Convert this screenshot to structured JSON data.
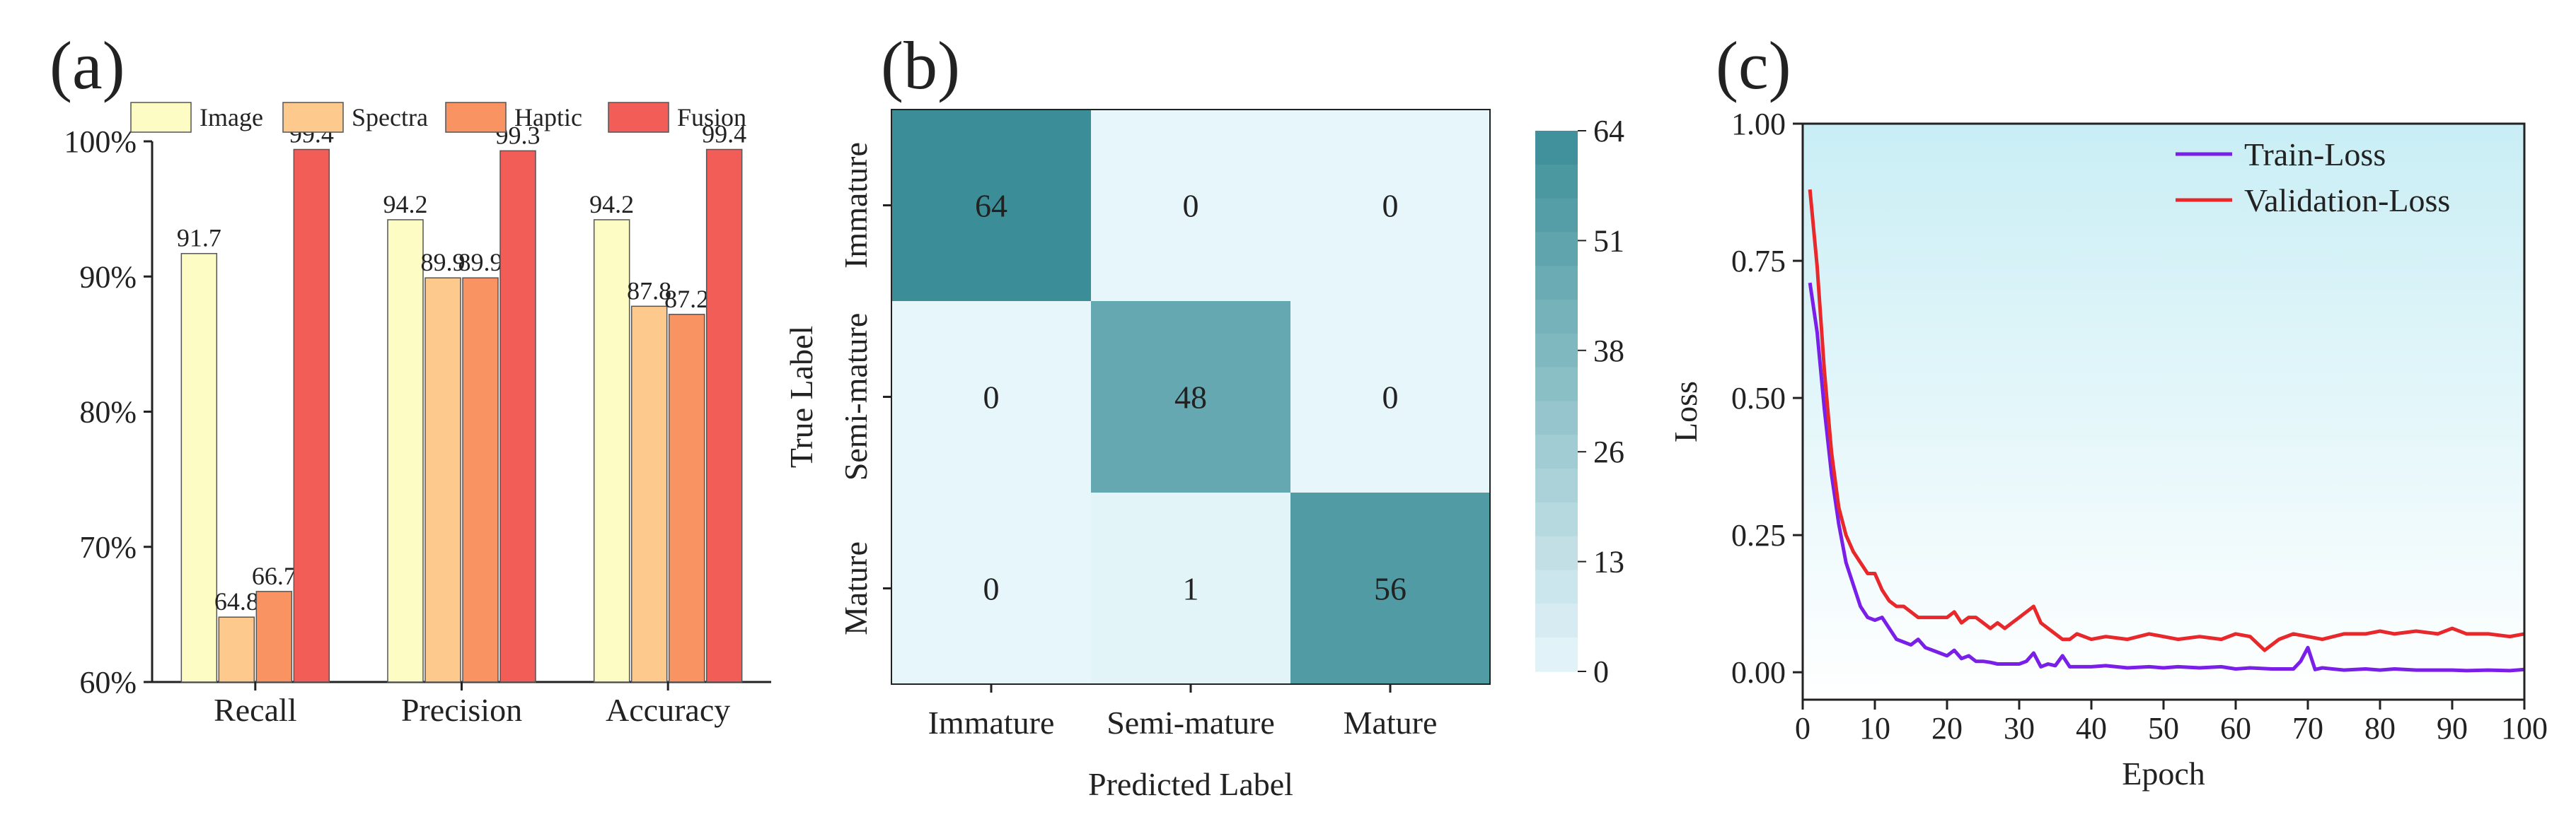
{
  "panels": {
    "a": {
      "letter": "(a)"
    },
    "b": {
      "letter": "(b)"
    },
    "c": {
      "letter": "(c)"
    }
  },
  "chart_data": [
    {
      "id": "a",
      "type": "bar",
      "categories": [
        "Recall",
        "Precision",
        "Accuracy"
      ],
      "series": [
        {
          "name": "Image",
          "color": "#fcfcc4",
          "values": [
            91.7,
            94.2,
            94.2
          ]
        },
        {
          "name": "Spectra",
          "color": "#fdc98d",
          "values": [
            64.8,
            89.9,
            87.8
          ]
        },
        {
          "name": "Haptic",
          "color": "#f99462",
          "values": [
            66.7,
            89.9,
            87.2
          ]
        },
        {
          "name": "Fusion",
          "color": "#f25d58",
          "values": [
            99.4,
            99.3,
            99.4
          ]
        }
      ],
      "data_labels": [
        [
          "91.7",
          "94.2",
          "94.2"
        ],
        [
          "64.8",
          "89.9",
          "87.8"
        ],
        [
          "66.7",
          "89.9",
          "87.2"
        ],
        [
          "99.4",
          "99.3",
          "99.4"
        ]
      ],
      "ylim": [
        60,
        100
      ],
      "yticks": [
        60,
        70,
        80,
        90,
        100
      ],
      "ytick_labels": [
        "60%",
        "70%",
        "80%",
        "90%",
        "100%"
      ],
      "legend_position": "top",
      "grid": false
    },
    {
      "id": "b",
      "type": "heatmap",
      "x_categories": [
        "Immature",
        "Semi-mature",
        "Mature"
      ],
      "y_categories": [
        "Immature",
        "Semi-mature",
        "Mature"
      ],
      "matrix": [
        [
          64,
          0,
          0
        ],
        [
          0,
          48,
          0
        ],
        [
          0,
          1,
          56
        ]
      ],
      "matrix_labels": [
        [
          "64",
          "0",
          "0"
        ],
        [
          "0",
          "48",
          "0"
        ],
        [
          "0",
          "1",
          "56"
        ]
      ],
      "xlabel": "Predicted Label",
      "ylabel": "True Label",
      "colorbar": {
        "min": 0,
        "max": 64,
        "ticks": [
          "0",
          "13",
          "26",
          "38",
          "51",
          "64"
        ],
        "color_low": "#e6f6fb",
        "color_high": "#3b8e98"
      }
    },
    {
      "id": "c",
      "type": "line",
      "xlabel": "Epoch",
      "ylabel": "Loss",
      "xlim": [
        0,
        100
      ],
      "ylim": [
        -0.05,
        1.0
      ],
      "xticks": [
        "0",
        "10",
        "20",
        "30",
        "40",
        "50",
        "60",
        "70",
        "80",
        "90",
        "100"
      ],
      "yticks": [
        "0.00",
        "0.25",
        "0.50",
        "0.75",
        "1.00"
      ],
      "legend_position": "top-right",
      "background_gradient": [
        "#c9eef5",
        "#ffffff"
      ],
      "series": [
        {
          "name": "Train-Loss",
          "color": "#7a1fe8",
          "x": [
            1,
            2,
            3,
            4,
            5,
            6,
            7,
            8,
            9,
            10,
            11,
            12,
            13,
            14,
            15,
            16,
            17,
            18,
            19,
            20,
            21,
            22,
            23,
            24,
            25,
            26,
            27,
            28,
            29,
            30,
            31,
            32,
            33,
            34,
            35,
            36,
            37,
            38,
            39,
            40,
            42,
            45,
            48,
            50,
            52,
            55,
            58,
            60,
            62,
            65,
            68,
            69,
            70,
            71,
            72,
            75,
            78,
            80,
            82,
            85,
            88,
            90,
            92,
            95,
            98,
            100
          ],
          "y": [
            0.71,
            0.62,
            0.48,
            0.36,
            0.27,
            0.2,
            0.16,
            0.12,
            0.1,
            0.095,
            0.1,
            0.08,
            0.06,
            0.055,
            0.05,
            0.06,
            0.045,
            0.04,
            0.035,
            0.03,
            0.04,
            0.025,
            0.03,
            0.02,
            0.02,
            0.018,
            0.015,
            0.015,
            0.015,
            0.015,
            0.02,
            0.035,
            0.01,
            0.015,
            0.012,
            0.03,
            0.01,
            0.01,
            0.01,
            0.01,
            0.012,
            0.008,
            0.01,
            0.008,
            0.01,
            0.008,
            0.01,
            0.006,
            0.008,
            0.006,
            0.006,
            0.02,
            0.045,
            0.005,
            0.008,
            0.004,
            0.006,
            0.004,
            0.006,
            0.004,
            0.004,
            0.004,
            0.003,
            0.004,
            0.003,
            0.005
          ]
        },
        {
          "name": "Validation-Loss",
          "color": "#e8282b",
          "x": [
            1,
            2,
            3,
            4,
            5,
            6,
            7,
            8,
            9,
            10,
            11,
            12,
            13,
            14,
            15,
            16,
            17,
            18,
            19,
            20,
            21,
            22,
            23,
            24,
            25,
            26,
            27,
            28,
            29,
            30,
            31,
            32,
            33,
            34,
            35,
            36,
            37,
            38,
            39,
            40,
            42,
            45,
            48,
            50,
            52,
            55,
            58,
            60,
            62,
            64,
            66,
            68,
            70,
            72,
            75,
            78,
            80,
            82,
            85,
            88,
            90,
            92,
            95,
            98,
            100
          ],
          "y": [
            0.88,
            0.74,
            0.55,
            0.4,
            0.3,
            0.25,
            0.22,
            0.2,
            0.18,
            0.18,
            0.15,
            0.13,
            0.12,
            0.12,
            0.11,
            0.1,
            0.1,
            0.1,
            0.1,
            0.1,
            0.11,
            0.09,
            0.1,
            0.1,
            0.09,
            0.08,
            0.09,
            0.08,
            0.09,
            0.1,
            0.11,
            0.12,
            0.09,
            0.08,
            0.07,
            0.06,
            0.06,
            0.07,
            0.065,
            0.06,
            0.065,
            0.06,
            0.07,
            0.065,
            0.06,
            0.065,
            0.06,
            0.07,
            0.065,
            0.04,
            0.06,
            0.07,
            0.065,
            0.06,
            0.07,
            0.07,
            0.075,
            0.07,
            0.075,
            0.07,
            0.08,
            0.07,
            0.07,
            0.065,
            0.07
          ]
        }
      ]
    }
  ]
}
